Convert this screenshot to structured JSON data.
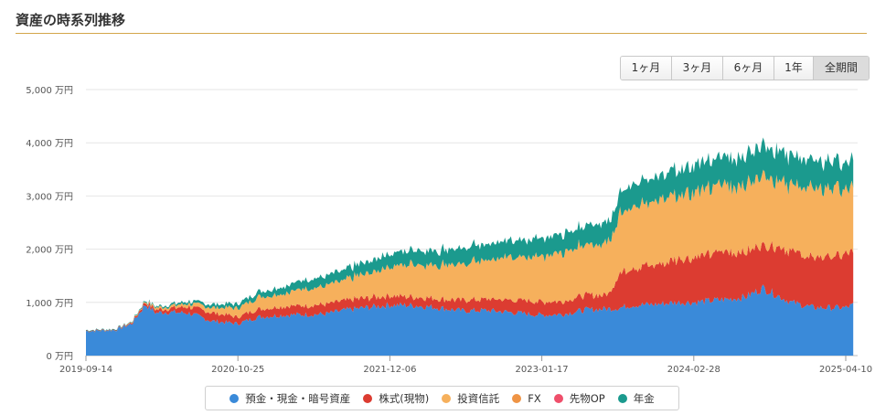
{
  "header": {
    "title": "資産の時系列推移"
  },
  "range_tabs": [
    {
      "label": "1ヶ月",
      "active": false
    },
    {
      "label": "3ヶ月",
      "active": false
    },
    {
      "label": "6ヶ月",
      "active": false
    },
    {
      "label": "1年",
      "active": false
    },
    {
      "label": "全期間",
      "active": true
    }
  ],
  "chart_data": {
    "type": "area",
    "stacked": true,
    "title": "",
    "xlabel": "",
    "ylabel": "",
    "ylim": [
      0,
      5000
    ],
    "y_unit": "万円",
    "y_ticks": [
      "0 万円",
      "1,000 万円",
      "2,000 万円",
      "3,000 万円",
      "4,000 万円",
      "5,000 万円"
    ],
    "x_ticks": [
      "2019-09-14",
      "2020-10-25",
      "2021-12-06",
      "2023-01-17",
      "2024-02-28",
      "2025-04-10"
    ],
    "grid": true,
    "legend_position": "bottom",
    "x": [
      "2019-09-14",
      "2019-12-01",
      "2020-01-15",
      "2020-02-20",
      "2020-03-20",
      "2020-04-15",
      "2020-06-15",
      "2020-08-15",
      "2020-10-25",
      "2020-12-15",
      "2021-02-15",
      "2021-04-15",
      "2021-06-15",
      "2021-08-15",
      "2021-10-15",
      "2021-12-06",
      "2022-02-15",
      "2022-04-15",
      "2022-06-15",
      "2022-08-15",
      "2022-10-15",
      "2023-01-17",
      "2023-03-15",
      "2023-05-15",
      "2023-07-15",
      "2023-08-15",
      "2023-09-15",
      "2023-11-15",
      "2024-01-15",
      "2024-02-28",
      "2024-05-15",
      "2024-07-15",
      "2024-09-01",
      "2024-11-15",
      "2025-01-15",
      "2025-04-10",
      "2025-04-30"
    ],
    "series": [
      {
        "name": "預金・現金・暗号資産",
        "color": "#3a8ad9",
        "values": [
          460,
          480,
          600,
          960,
          800,
          820,
          800,
          650,
          600,
          720,
          760,
          770,
          780,
          860,
          910,
          950,
          940,
          900,
          840,
          850,
          820,
          760,
          780,
          860,
          880,
          900,
          950,
          960,
          1000,
          1000,
          1050,
          1100,
          1270,
          1000,
          900,
          900,
          950
        ]
      },
      {
        "name": "株式(現物)",
        "color": "#dc3c31",
        "values": [
          10,
          10,
          20,
          50,
          60,
          60,
          120,
          160,
          130,
          150,
          160,
          170,
          180,
          180,
          180,
          180,
          160,
          170,
          200,
          210,
          230,
          250,
          250,
          270,
          270,
          650,
          700,
          750,
          800,
          840,
          900,
          850,
          850,
          950,
          950,
          980,
          1000
        ]
      },
      {
        "name": "投資信託",
        "color": "#f6b05c",
        "values": [
          0,
          0,
          10,
          20,
          40,
          40,
          60,
          100,
          170,
          220,
          240,
          320,
          340,
          400,
          470,
          560,
          620,
          640,
          680,
          730,
          790,
          870,
          930,
          950,
          990,
          1130,
          1150,
          1180,
          1220,
          1240,
          1250,
          1280,
          1300,
          1250,
          1280,
          1250,
          1250
        ]
      },
      {
        "name": "FX",
        "color": "#ef9445",
        "values": [
          0,
          0,
          0,
          0,
          0,
          0,
          0,
          0,
          0,
          0,
          0,
          0,
          0,
          0,
          0,
          0,
          0,
          0,
          0,
          0,
          0,
          0,
          0,
          0,
          0,
          0,
          0,
          0,
          0,
          0,
          0,
          0,
          0,
          0,
          0,
          0,
          0
        ]
      },
      {
        "name": "先物OP",
        "color": "#ef4f6b",
        "values": [
          0,
          0,
          0,
          0,
          0,
          0,
          0,
          0,
          0,
          0,
          0,
          0,
          0,
          0,
          0,
          0,
          0,
          0,
          0,
          0,
          0,
          0,
          0,
          0,
          0,
          0,
          0,
          0,
          0,
          0,
          0,
          0,
          0,
          0,
          0,
          0,
          0
        ]
      },
      {
        "name": "年金",
        "color": "#1b9a8e",
        "values": [
          10,
          10,
          10,
          20,
          20,
          30,
          40,
          60,
          80,
          100,
          130,
          160,
          180,
          200,
          230,
          250,
          270,
          280,
          300,
          300,
          310,
          330,
          350,
          360,
          390,
          400,
          420,
          450,
          480,
          500,
          520,
          540,
          580,
          540,
          520,
          500,
          500
        ]
      }
    ]
  }
}
